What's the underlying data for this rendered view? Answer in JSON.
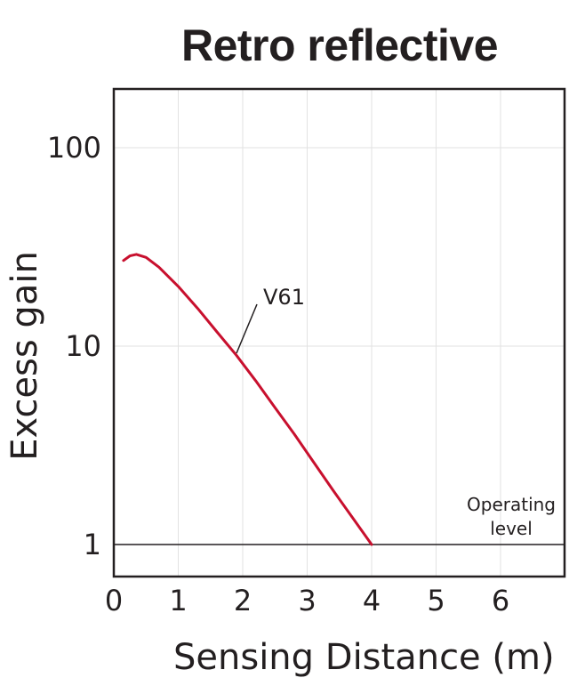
{
  "chart_data": {
    "type": "line",
    "title": "Retro reflective",
    "xlabel": "Sensing Distance (m)",
    "ylabel": "Excess gain",
    "yscale": "log",
    "xlim": [
      0,
      6.5
    ],
    "ylim": [
      0.73,
      200
    ],
    "x_ticks": [
      "0",
      "1",
      "2",
      "3",
      "4",
      "5",
      "6"
    ],
    "y_ticks": [
      {
        "value": 1,
        "label": "1"
      },
      {
        "value": 10,
        "label": "10"
      },
      {
        "value": 100,
        "label": "100"
      }
    ],
    "grid": true,
    "series": [
      {
        "name": "V61",
        "color": "#c8102e",
        "points": [
          [
            0.15,
            27
          ],
          [
            0.25,
            28.5
          ],
          [
            0.35,
            29
          ],
          [
            0.5,
            28
          ],
          [
            0.7,
            25
          ],
          [
            1.0,
            20
          ],
          [
            1.3,
            15.5
          ],
          [
            1.6,
            11.8
          ],
          [
            1.9,
            9
          ],
          [
            2.2,
            6.7
          ],
          [
            2.5,
            4.9
          ],
          [
            2.8,
            3.6
          ],
          [
            3.1,
            2.6
          ],
          [
            3.4,
            1.88
          ],
          [
            3.7,
            1.37
          ],
          [
            4.0,
            1.0
          ]
        ]
      }
    ],
    "annotations": [
      {
        "text": "V61",
        "x": 2.3,
        "y": 15
      }
    ],
    "reference_line": {
      "y": 1,
      "label_line1": "Operating",
      "label_line2": "level"
    }
  }
}
